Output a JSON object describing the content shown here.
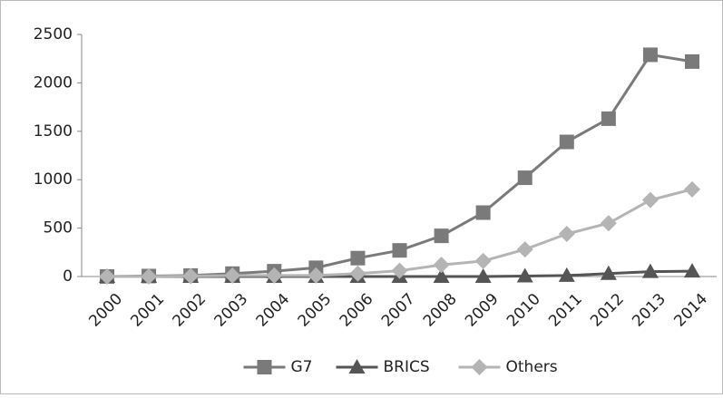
{
  "chart_data": {
    "type": "line",
    "x": [
      "2000",
      "2001",
      "2002",
      "2003",
      "2004",
      "2005",
      "2006",
      "2007",
      "2008",
      "2009",
      "2010",
      "2011",
      "2012",
      "2013",
      "2014"
    ],
    "series": [
      {
        "name": "G7",
        "color": "#7a7a7a",
        "marker": "square",
        "values": [
          0,
          5,
          10,
          30,
          55,
          90,
          190,
          270,
          420,
          660,
          1020,
          1390,
          1630,
          2290,
          2220
        ]
      },
      {
        "name": "BRICS",
        "color": "#555555",
        "marker": "triangle",
        "values": [
          0,
          0,
          0,
          0,
          0,
          0,
          0,
          0,
          0,
          0,
          5,
          10,
          30,
          50,
          55
        ]
      },
      {
        "name": "Others",
        "color": "#b4b4b4",
        "marker": "diamond",
        "values": [
          0,
          0,
          5,
          10,
          10,
          10,
          30,
          60,
          120,
          160,
          280,
          440,
          550,
          790,
          900
        ]
      }
    ],
    "ylim": [
      0,
      2500
    ],
    "yticks": [
      0,
      500,
      1000,
      1500,
      2000,
      2500
    ],
    "grid": false,
    "legend": "bottom"
  }
}
